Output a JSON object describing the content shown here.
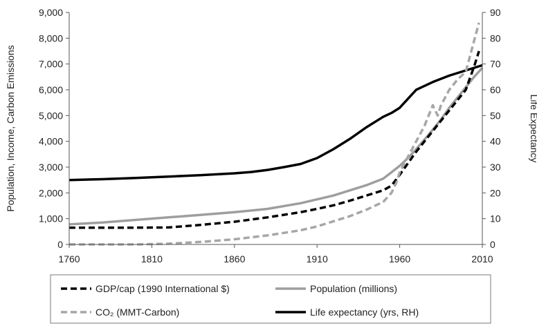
{
  "chart_data": {
    "type": "line",
    "title": "",
    "xlabel": "",
    "ylabel": "Population, Income, Carbon Emissions",
    "y2label": "Life Expectancy",
    "xlim": [
      1760,
      2010
    ],
    "ylim": [
      0,
      9000
    ],
    "y2lim": [
      0,
      90
    ],
    "x_ticks": [
      "1760",
      "1810",
      "1860",
      "1910",
      "1960",
      "2010"
    ],
    "y_ticks": [
      "0",
      "1,000",
      "2,000",
      "3,000",
      "4,000",
      "5,000",
      "6,000",
      "7,000",
      "8,000",
      "9,000"
    ],
    "y2_ticks": [
      "0",
      "10",
      "20",
      "30",
      "40",
      "50",
      "60",
      "70",
      "80",
      "90"
    ],
    "grid": "none",
    "legend_position": "bottom",
    "series": [
      {
        "name": "GDP/cap (1990 International $)",
        "axis": "left",
        "color": "#000000",
        "style": "dashed",
        "x": [
          1760,
          1780,
          1800,
          1820,
          1840,
          1860,
          1880,
          1900,
          1910,
          1920,
          1930,
          1940,
          1950,
          1955,
          1960,
          1965,
          1970,
          1975,
          1980,
          1985,
          1990,
          1995,
          2000,
          2005,
          2008
        ],
        "y": [
          650,
          650,
          650,
          660,
          760,
          880,
          1050,
          1250,
          1380,
          1520,
          1700,
          1900,
          2100,
          2280,
          2700,
          3150,
          3600,
          4000,
          4400,
          4800,
          5200,
          5600,
          6000,
          6900,
          7500
        ]
      },
      {
        "name": "Population (millions)",
        "axis": "left",
        "color": "#9e9e9e",
        "style": "solid",
        "x": [
          1760,
          1780,
          1800,
          1820,
          1840,
          1860,
          1880,
          1900,
          1910,
          1920,
          1930,
          1940,
          1950,
          1955,
          1960,
          1965,
          1970,
          1975,
          1980,
          1985,
          1990,
          1995,
          2000,
          2005,
          2010
        ],
        "y": [
          780,
          850,
          950,
          1050,
          1150,
          1250,
          1380,
          1600,
          1750,
          1900,
          2100,
          2300,
          2550,
          2800,
          3050,
          3350,
          3700,
          4070,
          4450,
          4850,
          5300,
          5700,
          6100,
          6500,
          6850
        ]
      },
      {
        "name": "CO₂ (MMT-Carbon)",
        "axis": "left",
        "color": "#a6a6a6",
        "style": "dashed",
        "x": [
          1760,
          1780,
          1800,
          1820,
          1840,
          1860,
          1880,
          1900,
          1910,
          1920,
          1930,
          1940,
          1950,
          1955,
          1958,
          1960,
          1965,
          1970,
          1975,
          1980,
          1983,
          1985,
          1990,
          1995,
          2000,
          2005,
          2008
        ],
        "y": [
          0,
          0,
          0,
          30,
          100,
          200,
          350,
          550,
          700,
          900,
          1100,
          1350,
          1650,
          2000,
          2400,
          2800,
          3400,
          4000,
          4600,
          5400,
          5000,
          5400,
          6000,
          6400,
          6700,
          7900,
          8600
        ]
      },
      {
        "name": "Life expectancy (yrs, RH)",
        "axis": "right",
        "color": "#000000",
        "style": "solid",
        "x": [
          1760,
          1780,
          1800,
          1820,
          1840,
          1860,
          1870,
          1880,
          1890,
          1900,
          1910,
          1920,
          1930,
          1940,
          1950,
          1955,
          1960,
          1965,
          1970,
          1975,
          1980,
          1990,
          2000,
          2010
        ],
        "y": [
          25,
          25.3,
          25.8,
          26.3,
          26.9,
          27.6,
          28.1,
          28.9,
          30,
          31.2,
          33.5,
          37,
          41,
          45.5,
          49.5,
          51,
          53,
          56.5,
          60,
          61.5,
          63,
          65.5,
          67.5,
          69.5
        ]
      }
    ],
    "legend": [
      {
        "label": "GDP/cap (1990 International $)",
        "series": 0
      },
      {
        "label": "Population (millions)",
        "series": 1
      },
      {
        "label": "CO₂ (MMT-Carbon)",
        "series": 2
      },
      {
        "label": "Life expectancy (yrs, RH)",
        "series": 3
      }
    ]
  }
}
